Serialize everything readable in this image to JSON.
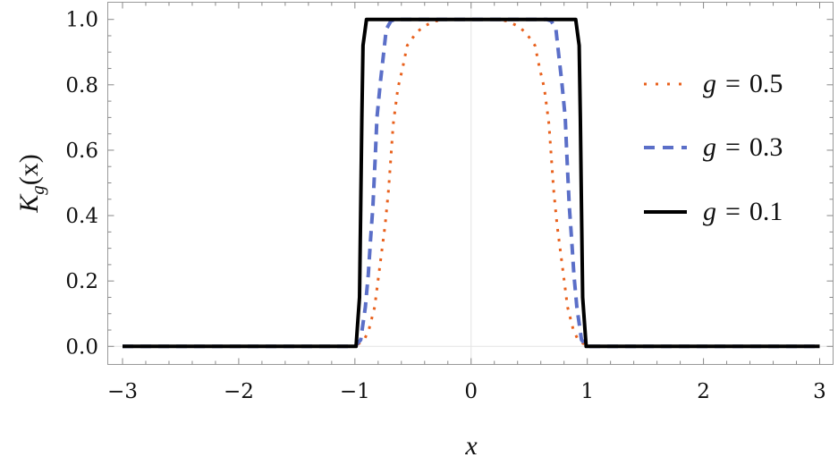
{
  "chart_data": {
    "type": "line",
    "title": "",
    "xlabel": "x",
    "ylabel": "K_g(x)",
    "ylabel_parts": {
      "main": "K",
      "sub": "g",
      "arg": "(x)"
    },
    "xlim": [
      -3,
      3
    ],
    "ylim": [
      0,
      1
    ],
    "x_ticks": [
      -3,
      -2,
      -1,
      0,
      1,
      2,
      3
    ],
    "x_tick_labels": [
      "−3",
      "−2",
      "−1",
      "0",
      "1",
      "2",
      "3"
    ],
    "y_ticks": [
      0,
      0.2,
      0.4,
      0.6,
      0.8,
      1.0
    ],
    "y_tick_labels": [
      "0.0",
      "0.2",
      "0.4",
      "0.6",
      "0.8",
      "1.0"
    ],
    "grid": false,
    "zero_lines": true,
    "legend_placement": "right",
    "series": [
      {
        "name": "g = 0.5",
        "legend": {
          "var": "g",
          "eq": "=",
          "val": "0.5"
        },
        "color": "#E8601C",
        "style": "dotted",
        "x": [
          -3,
          -1,
          -0.92,
          -0.88,
          -0.83,
          -0.78,
          -0.74,
          -0.71,
          -0.69,
          -0.67,
          -0.63,
          -0.59,
          -0.55,
          -0.47,
          -0.4,
          -0.31,
          -0.2,
          0.2,
          0.31,
          0.4,
          0.47,
          0.55,
          0.59,
          0.63,
          0.67,
          0.69,
          0.71,
          0.74,
          0.78,
          0.83,
          0.88,
          0.92,
          1,
          3
        ],
        "y": [
          0,
          0,
          0.02,
          0.05,
          0.12,
          0.26,
          0.37,
          0.48,
          0.58,
          0.68,
          0.79,
          0.85,
          0.92,
          0.96,
          0.98,
          0.995,
          1,
          1,
          0.995,
          0.98,
          0.96,
          0.92,
          0.85,
          0.79,
          0.68,
          0.58,
          0.48,
          0.37,
          0.26,
          0.12,
          0.05,
          0.02,
          0,
          0
        ]
      },
      {
        "name": "g = 0.3",
        "legend": {
          "var": "g",
          "eq": "=",
          "val": "0.3"
        },
        "color": "#5B6FC8",
        "style": "dashed",
        "x": [
          -3,
          -1,
          -0.95,
          -0.91,
          -0.885,
          -0.865,
          -0.845,
          -0.825,
          -0.81,
          -0.78,
          -0.755,
          -0.73,
          -0.69,
          -0.65,
          0.65,
          0.69,
          0.73,
          0.755,
          0.78,
          0.81,
          0.825,
          0.845,
          0.865,
          0.885,
          0.91,
          0.95,
          1,
          3
        ],
        "y": [
          0,
          0,
          0.02,
          0.12,
          0.22,
          0.33,
          0.43,
          0.58,
          0.7,
          0.81,
          0.89,
          0.97,
          0.995,
          1,
          1,
          0.995,
          0.97,
          0.89,
          0.81,
          0.7,
          0.58,
          0.43,
          0.33,
          0.22,
          0.12,
          0.02,
          0,
          0
        ]
      },
      {
        "name": "g = 0.1",
        "legend": {
          "var": "g",
          "eq": "=",
          "val": "0.1"
        },
        "color": "#000000",
        "style": "solid",
        "x": [
          -3,
          -0.99,
          -0.96,
          -0.95,
          -0.94,
          -0.93,
          -0.9,
          0.9,
          0.93,
          0.94,
          0.95,
          0.96,
          0.99,
          3
        ],
        "y": [
          0,
          0,
          0.15,
          0.42,
          0.7,
          0.92,
          1,
          1,
          0.92,
          0.7,
          0.42,
          0.15,
          0,
          0
        ]
      }
    ]
  }
}
